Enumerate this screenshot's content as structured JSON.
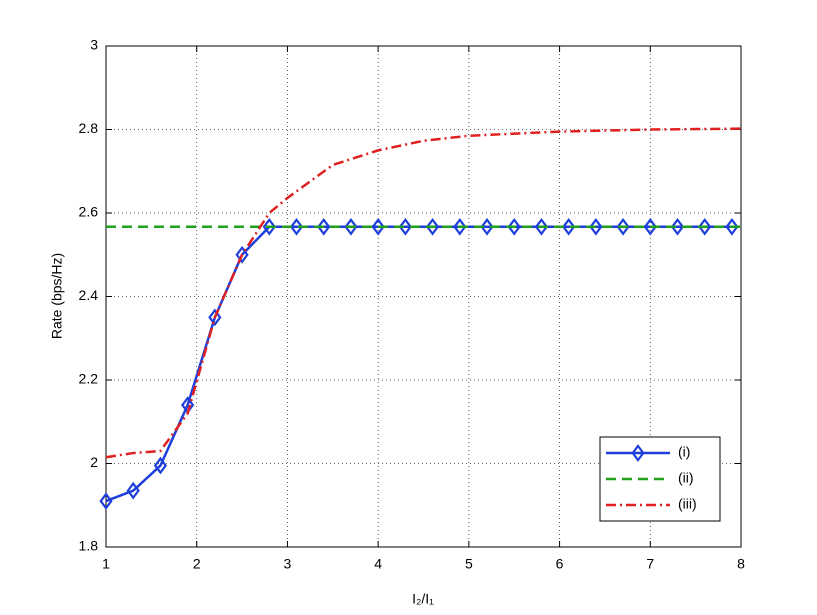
{
  "chart_data": {
    "type": "line",
    "x_label": "I₂/I₁",
    "y_label": "Rate (bps/Hz)",
    "xlim": [
      1,
      8
    ],
    "ylim": [
      1.8,
      3
    ],
    "xticks": [
      1,
      2,
      3,
      4,
      5,
      6,
      7,
      8
    ],
    "yticks": [
      1.8,
      2,
      2.2,
      2.4,
      2.6,
      2.8,
      3
    ],
    "grid": true,
    "legend": "lower right",
    "series": [
      {
        "name": "(i)",
        "color": "#1f3fdb",
        "style": "solid",
        "marker": "diamond",
        "x": [
          1,
          1.3,
          1.6,
          1.9,
          2.2,
          2.5,
          2.8,
          3.1,
          3.4,
          3.7,
          4,
          4.3,
          4.6,
          4.9,
          5.2,
          5.5,
          5.8,
          6.1,
          6.4,
          6.7,
          7,
          7.3,
          7.6,
          7.9
        ],
        "values": [
          1.91,
          1.935,
          1.995,
          2.14,
          2.35,
          2.5,
          2.567,
          2.567,
          2.567,
          2.567,
          2.567,
          2.567,
          2.567,
          2.567,
          2.567,
          2.567,
          2.567,
          2.567,
          2.567,
          2.567,
          2.567,
          2.567,
          2.567,
          2.567
        ]
      },
      {
        "name": "(ii)",
        "color": "#1ea01e",
        "style": "dashed",
        "x": [
          1,
          8
        ],
        "values": [
          2.567,
          2.567
        ]
      },
      {
        "name": "(iii)",
        "color": "#e02020",
        "style": "dashdot",
        "x": [
          1,
          1.3,
          1.6,
          1.9,
          2.2,
          2.5,
          2.8,
          3,
          3.5,
          4,
          4.5,
          5,
          6,
          7,
          8
        ],
        "values": [
          2.015,
          2.025,
          2.03,
          2.12,
          2.35,
          2.5,
          2.6,
          2.636,
          2.715,
          2.75,
          2.773,
          2.785,
          2.795,
          2.8,
          2.802
        ]
      }
    ]
  }
}
